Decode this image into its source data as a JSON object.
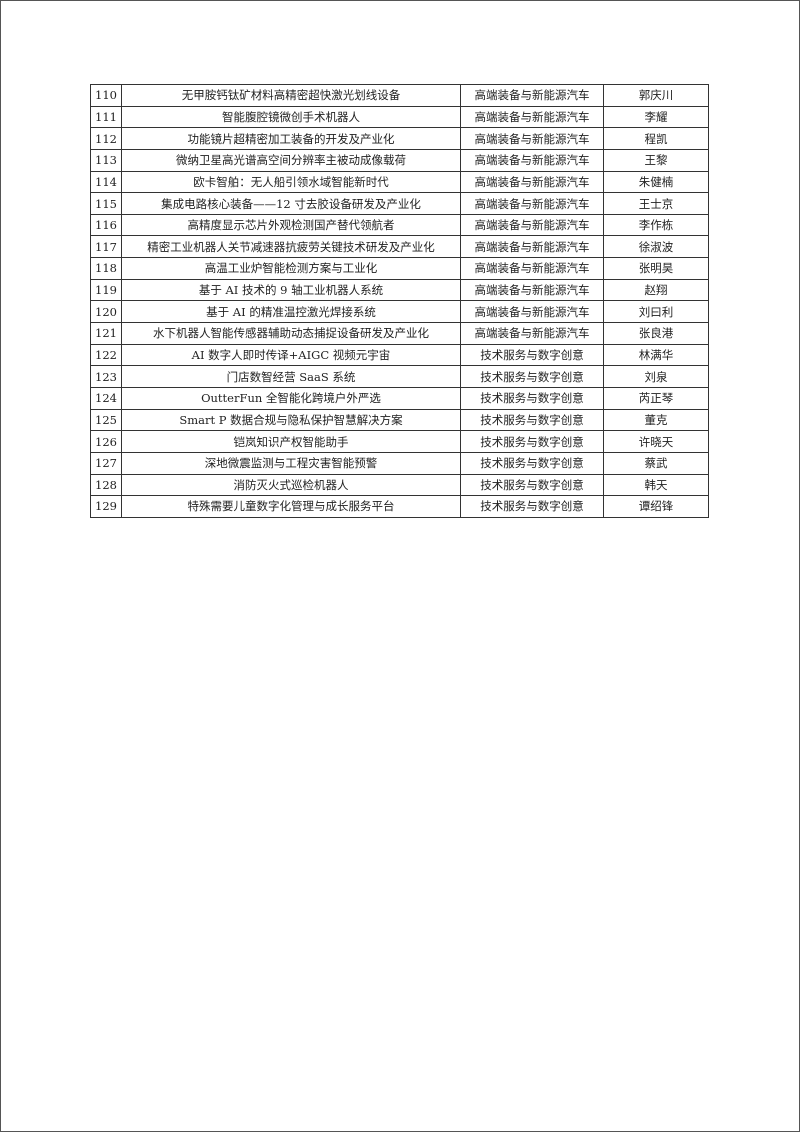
{
  "rows": [
    {
      "no": "110",
      "project": "无甲胺钙钛矿材料高精密超快激光划线设备",
      "category": "高端装备与新能源汽车",
      "person": "郭庆川"
    },
    {
      "no": "111",
      "project": "智能腹腔镜微创手术机器人",
      "category": "高端装备与新能源汽车",
      "person": "李耀"
    },
    {
      "no": "112",
      "project": "功能镜片超精密加工装备的开发及产业化",
      "category": "高端装备与新能源汽车",
      "person": "程凯"
    },
    {
      "no": "113",
      "project": "微纳卫星高光谱高空间分辨率主被动成像载荷",
      "category": "高端装备与新能源汽车",
      "person": "王黎"
    },
    {
      "no": "114",
      "project": "欧卡智舶：无人船引领水域智能新时代",
      "category": "高端装备与新能源汽车",
      "person": "朱健楠"
    },
    {
      "no": "115",
      "project": "集成电路核心装备——12 寸去胶设备研发及产业化",
      "category": "高端装备与新能源汽车",
      "person": "王士京"
    },
    {
      "no": "116",
      "project": "高精度显示芯片外观检测国产替代领航者",
      "category": "高端装备与新能源汽车",
      "person": "李作栋"
    },
    {
      "no": "117",
      "project": "精密工业机器人关节减速器抗疲劳关键技术研发及产业化",
      "category": "高端装备与新能源汽车",
      "person": "徐淑波"
    },
    {
      "no": "118",
      "project": "高温工业炉智能检测方案与工业化",
      "category": "高端装备与新能源汽车",
      "person": "张明昊"
    },
    {
      "no": "119",
      "project": "基于 AI 技术的 9 轴工业机器人系统",
      "category": "高端装备与新能源汽车",
      "person": "赵翔"
    },
    {
      "no": "120",
      "project": "基于 AI 的精准温控激光焊接系统",
      "category": "高端装备与新能源汽车",
      "person": "刘曰利"
    },
    {
      "no": "121",
      "project": "水下机器人智能传感器辅助动态捕捉设备研发及产业化",
      "category": "高端装备与新能源汽车",
      "person": "张良港"
    },
    {
      "no": "122",
      "project": "AI 数字人即时传译+AIGC 视频元宇宙",
      "category": "技术服务与数字创意",
      "person": "林满华"
    },
    {
      "no": "123",
      "project": "门店数智经营 SaaS 系统",
      "category": "技术服务与数字创意",
      "person": "刘泉"
    },
    {
      "no": "124",
      "project": "OutterFun 全智能化跨境户外严选",
      "category": "技术服务与数字创意",
      "person": "芮正琴"
    },
    {
      "no": "125",
      "project": "Smart P 数据合规与隐私保护智慧解决方案",
      "category": "技术服务与数字创意",
      "person": "董克"
    },
    {
      "no": "126",
      "project": "铠岚知识产权智能助手",
      "category": "技术服务与数字创意",
      "person": "许晓天"
    },
    {
      "no": "127",
      "project": "深地微震监测与工程灾害智能预警",
      "category": "技术服务与数字创意",
      "person": "蔡武"
    },
    {
      "no": "128",
      "project": "消防灭火式巡检机器人",
      "category": "技术服务与数字创意",
      "person": "韩天"
    },
    {
      "no": "129",
      "project": "特殊需要儿童数字化管理与成长服务平台",
      "category": "技术服务与数字创意",
      "person": "谭绍锋"
    }
  ]
}
